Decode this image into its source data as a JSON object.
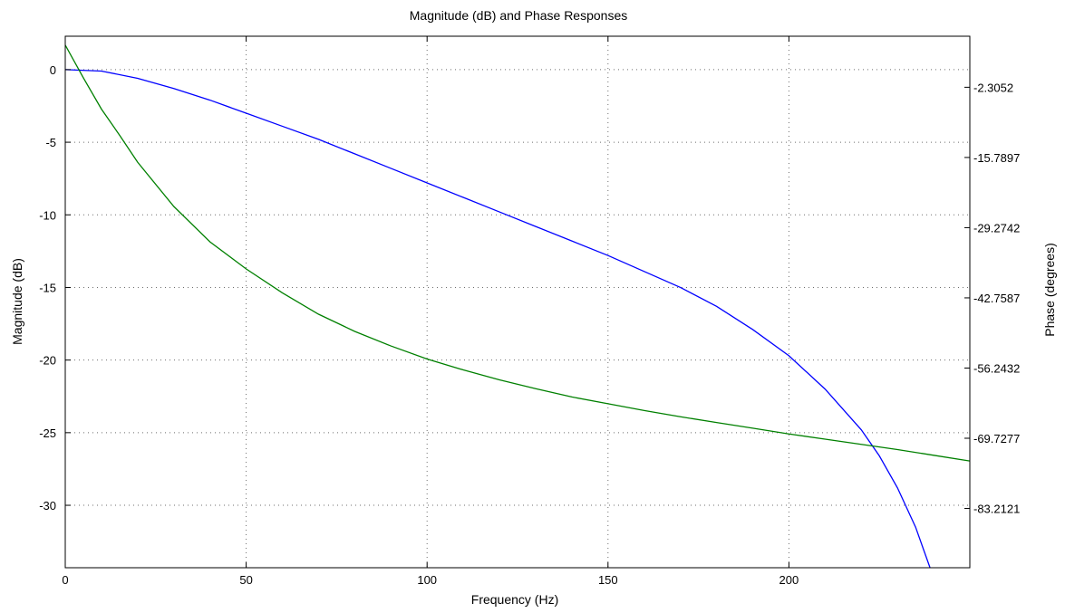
{
  "chart_data": {
    "type": "line",
    "title": "Magnitude (dB) and Phase Responses",
    "xlabel": "Frequency (Hz)",
    "ylabel": "Magnitude (dB)",
    "ylabel_right": "Phase (degrees)",
    "xlim": [
      0,
      250
    ],
    "ylim": [
      -34.3,
      2.3
    ],
    "ylim_right": [
      -94.6,
      7.5
    ],
    "grid": true,
    "x_ticks": [
      "0",
      "50",
      "100",
      "150",
      "200"
    ],
    "x_tick_values": [
      0,
      50,
      100,
      150,
      200
    ],
    "y_ticks": [
      "0",
      "-5",
      "-10",
      "-15",
      "-20",
      "-25",
      "-30"
    ],
    "y_tick_values": [
      0,
      -5,
      -10,
      -15,
      -20,
      -25,
      -30
    ],
    "y_right_ticks": [
      "-2.3052",
      "-15.7897",
      "-29.2742",
      "-42.7587",
      "-56.2432",
      "-69.7277",
      "-83.2121"
    ],
    "y_right_tick_values": [
      -2.3052,
      -15.7897,
      -29.2742,
      -42.7587,
      -56.2432,
      -69.7277,
      -83.2121
    ],
    "series": [
      {
        "axis": "left",
        "color": "#0000ff",
        "x": [
          0,
          10,
          20,
          30,
          40,
          50,
          60,
          70,
          80,
          90,
          100,
          110,
          120,
          130,
          140,
          150,
          160,
          170,
          180,
          190,
          200,
          210,
          220,
          225,
          230,
          235,
          240
        ],
        "values": [
          0,
          -0.1,
          -0.6,
          -1.3,
          -2.1,
          -3.0,
          -3.9,
          -4.8,
          -5.8,
          -6.8,
          -7.8,
          -8.8,
          -9.8,
          -10.8,
          -11.8,
          -12.8,
          -13.9,
          -15.0,
          -16.3,
          -17.9,
          -19.7,
          -22.0,
          -24.8,
          -26.6,
          -28.8,
          -31.5,
          -35.0
        ]
      },
      {
        "axis": "right",
        "color": "#008000",
        "x": [
          0,
          5,
          10,
          15,
          20,
          30,
          40,
          50,
          60,
          70,
          80,
          90,
          100,
          110,
          120,
          130,
          140,
          150,
          160,
          170,
          180,
          190,
          200,
          210,
          220,
          230,
          240,
          250
        ],
        "values": [
          5.8,
          -0.5,
          -6.5,
          -11.5,
          -16.7,
          -25.2,
          -32.0,
          -37.2,
          -41.8,
          -45.9,
          -49.2,
          -52.0,
          -54.5,
          -56.6,
          -58.5,
          -60.2,
          -61.8,
          -63.1,
          -64.4,
          -65.6,
          -66.7,
          -67.8,
          -68.9,
          -69.9,
          -70.9,
          -71.9,
          -73.0,
          -74.1
        ]
      }
    ]
  }
}
